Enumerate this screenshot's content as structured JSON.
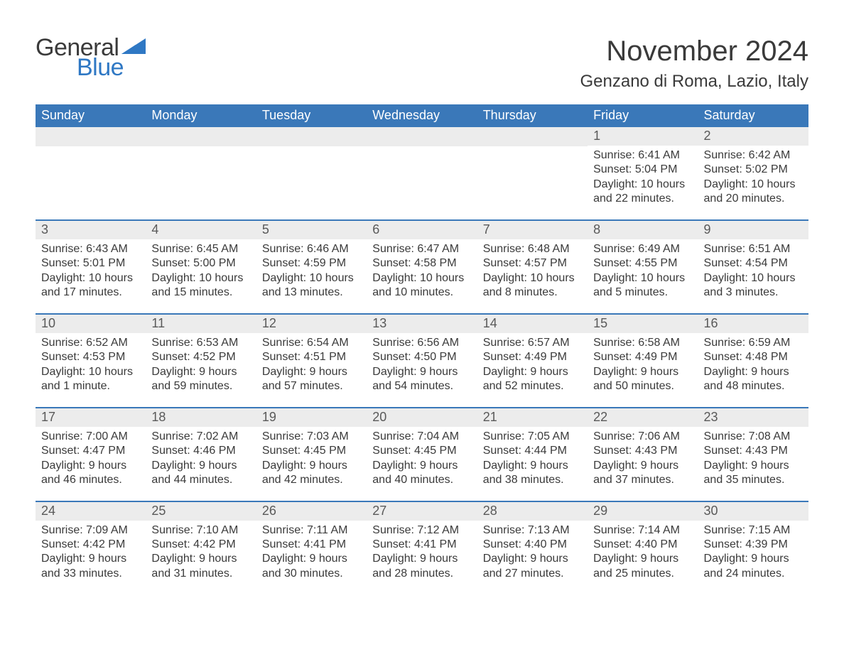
{
  "logo": {
    "text1": "General",
    "text2": "Blue",
    "shape_color": "#2f78c4"
  },
  "header": {
    "title": "November 2024",
    "location": "Genzano di Roma, Lazio, Italy"
  },
  "colors": {
    "header_bg": "#3a78b9",
    "header_text": "#ffffff",
    "daynum_bg": "#ececec",
    "daynum_text": "#595959",
    "body_text": "#3a3a3a",
    "rule": "#3a78b9",
    "page_bg": "#ffffff"
  },
  "typography": {
    "title_fontsize": 40,
    "location_fontsize": 24,
    "dow_fontsize": 18,
    "daynum_fontsize": 18,
    "cell_fontsize": 16
  },
  "days_of_week": [
    "Sunday",
    "Monday",
    "Tuesday",
    "Wednesday",
    "Thursday",
    "Friday",
    "Saturday"
  ],
  "weeks": [
    [
      null,
      null,
      null,
      null,
      null,
      {
        "n": "1",
        "sunrise": "Sunrise: 6:41 AM",
        "sunset": "Sunset: 5:04 PM",
        "d1": "Daylight: 10 hours",
        "d2": "and 22 minutes."
      },
      {
        "n": "2",
        "sunrise": "Sunrise: 6:42 AM",
        "sunset": "Sunset: 5:02 PM",
        "d1": "Daylight: 10 hours",
        "d2": "and 20 minutes."
      }
    ],
    [
      {
        "n": "3",
        "sunrise": "Sunrise: 6:43 AM",
        "sunset": "Sunset: 5:01 PM",
        "d1": "Daylight: 10 hours",
        "d2": "and 17 minutes."
      },
      {
        "n": "4",
        "sunrise": "Sunrise: 6:45 AM",
        "sunset": "Sunset: 5:00 PM",
        "d1": "Daylight: 10 hours",
        "d2": "and 15 minutes."
      },
      {
        "n": "5",
        "sunrise": "Sunrise: 6:46 AM",
        "sunset": "Sunset: 4:59 PM",
        "d1": "Daylight: 10 hours",
        "d2": "and 13 minutes."
      },
      {
        "n": "6",
        "sunrise": "Sunrise: 6:47 AM",
        "sunset": "Sunset: 4:58 PM",
        "d1": "Daylight: 10 hours",
        "d2": "and 10 minutes."
      },
      {
        "n": "7",
        "sunrise": "Sunrise: 6:48 AM",
        "sunset": "Sunset: 4:57 PM",
        "d1": "Daylight: 10 hours",
        "d2": "and 8 minutes."
      },
      {
        "n": "8",
        "sunrise": "Sunrise: 6:49 AM",
        "sunset": "Sunset: 4:55 PM",
        "d1": "Daylight: 10 hours",
        "d2": "and 5 minutes."
      },
      {
        "n": "9",
        "sunrise": "Sunrise: 6:51 AM",
        "sunset": "Sunset: 4:54 PM",
        "d1": "Daylight: 10 hours",
        "d2": "and 3 minutes."
      }
    ],
    [
      {
        "n": "10",
        "sunrise": "Sunrise: 6:52 AM",
        "sunset": "Sunset: 4:53 PM",
        "d1": "Daylight: 10 hours",
        "d2": "and 1 minute."
      },
      {
        "n": "11",
        "sunrise": "Sunrise: 6:53 AM",
        "sunset": "Sunset: 4:52 PM",
        "d1": "Daylight: 9 hours",
        "d2": "and 59 minutes."
      },
      {
        "n": "12",
        "sunrise": "Sunrise: 6:54 AM",
        "sunset": "Sunset: 4:51 PM",
        "d1": "Daylight: 9 hours",
        "d2": "and 57 minutes."
      },
      {
        "n": "13",
        "sunrise": "Sunrise: 6:56 AM",
        "sunset": "Sunset: 4:50 PM",
        "d1": "Daylight: 9 hours",
        "d2": "and 54 minutes."
      },
      {
        "n": "14",
        "sunrise": "Sunrise: 6:57 AM",
        "sunset": "Sunset: 4:49 PM",
        "d1": "Daylight: 9 hours",
        "d2": "and 52 minutes."
      },
      {
        "n": "15",
        "sunrise": "Sunrise: 6:58 AM",
        "sunset": "Sunset: 4:49 PM",
        "d1": "Daylight: 9 hours",
        "d2": "and 50 minutes."
      },
      {
        "n": "16",
        "sunrise": "Sunrise: 6:59 AM",
        "sunset": "Sunset: 4:48 PM",
        "d1": "Daylight: 9 hours",
        "d2": "and 48 minutes."
      }
    ],
    [
      {
        "n": "17",
        "sunrise": "Sunrise: 7:00 AM",
        "sunset": "Sunset: 4:47 PM",
        "d1": "Daylight: 9 hours",
        "d2": "and 46 minutes."
      },
      {
        "n": "18",
        "sunrise": "Sunrise: 7:02 AM",
        "sunset": "Sunset: 4:46 PM",
        "d1": "Daylight: 9 hours",
        "d2": "and 44 minutes."
      },
      {
        "n": "19",
        "sunrise": "Sunrise: 7:03 AM",
        "sunset": "Sunset: 4:45 PM",
        "d1": "Daylight: 9 hours",
        "d2": "and 42 minutes."
      },
      {
        "n": "20",
        "sunrise": "Sunrise: 7:04 AM",
        "sunset": "Sunset: 4:45 PM",
        "d1": "Daylight: 9 hours",
        "d2": "and 40 minutes."
      },
      {
        "n": "21",
        "sunrise": "Sunrise: 7:05 AM",
        "sunset": "Sunset: 4:44 PM",
        "d1": "Daylight: 9 hours",
        "d2": "and 38 minutes."
      },
      {
        "n": "22",
        "sunrise": "Sunrise: 7:06 AM",
        "sunset": "Sunset: 4:43 PM",
        "d1": "Daylight: 9 hours",
        "d2": "and 37 minutes."
      },
      {
        "n": "23",
        "sunrise": "Sunrise: 7:08 AM",
        "sunset": "Sunset: 4:43 PM",
        "d1": "Daylight: 9 hours",
        "d2": "and 35 minutes."
      }
    ],
    [
      {
        "n": "24",
        "sunrise": "Sunrise: 7:09 AM",
        "sunset": "Sunset: 4:42 PM",
        "d1": "Daylight: 9 hours",
        "d2": "and 33 minutes."
      },
      {
        "n": "25",
        "sunrise": "Sunrise: 7:10 AM",
        "sunset": "Sunset: 4:42 PM",
        "d1": "Daylight: 9 hours",
        "d2": "and 31 minutes."
      },
      {
        "n": "26",
        "sunrise": "Sunrise: 7:11 AM",
        "sunset": "Sunset: 4:41 PM",
        "d1": "Daylight: 9 hours",
        "d2": "and 30 minutes."
      },
      {
        "n": "27",
        "sunrise": "Sunrise: 7:12 AM",
        "sunset": "Sunset: 4:41 PM",
        "d1": "Daylight: 9 hours",
        "d2": "and 28 minutes."
      },
      {
        "n": "28",
        "sunrise": "Sunrise: 7:13 AM",
        "sunset": "Sunset: 4:40 PM",
        "d1": "Daylight: 9 hours",
        "d2": "and 27 minutes."
      },
      {
        "n": "29",
        "sunrise": "Sunrise: 7:14 AM",
        "sunset": "Sunset: 4:40 PM",
        "d1": "Daylight: 9 hours",
        "d2": "and 25 minutes."
      },
      {
        "n": "30",
        "sunrise": "Sunrise: 7:15 AM",
        "sunset": "Sunset: 4:39 PM",
        "d1": "Daylight: 9 hours",
        "d2": "and 24 minutes."
      }
    ]
  ]
}
